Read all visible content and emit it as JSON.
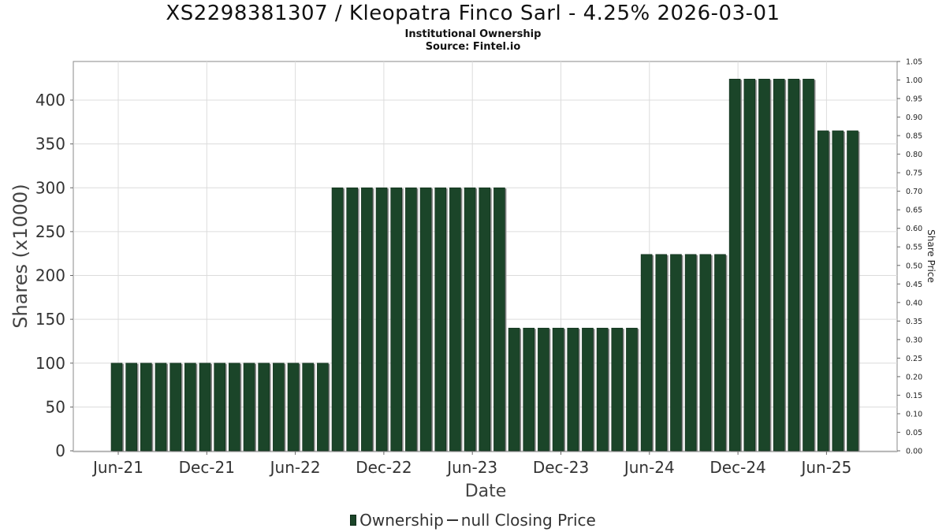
{
  "header": {
    "title": "XS2298381307 / Kleopatra Finco Sarl - 4.25% 2026-03-01",
    "subtitle": "Institutional Ownership",
    "source": "Source: Fintel.io"
  },
  "legend": {
    "ownership_label": "Ownership",
    "price_label": "null Closing Price"
  },
  "colors": {
    "bar_fill": "#1b4529",
    "bar_shadow": "#8a8a8a",
    "grid": "#dcdcdc",
    "plot_border": "#888888"
  },
  "chart_data": {
    "type": "bar",
    "title": "XS2298381307 / Kleopatra Finco Sarl - 4.25% 2026-03-01",
    "xlabel": "Date",
    "ylabel": "Shares (x1000)",
    "y2label": "Share Price",
    "ylim": [
      0,
      445
    ],
    "y2lim": [
      0,
      1.05
    ],
    "yticks": [
      0,
      50,
      100,
      150,
      200,
      250,
      300,
      350,
      400
    ],
    "y2ticks": [
      "0.00",
      "0.05",
      "0.10",
      "0.15",
      "0.20",
      "0.25",
      "0.30",
      "0.35",
      "0.40",
      "0.45",
      "0.50",
      "0.55",
      "0.60",
      "0.65",
      "0.70",
      "0.75",
      "0.80",
      "0.85",
      "0.90",
      "0.95",
      "1.00",
      "1.05"
    ],
    "xticks": [
      "Jun-21",
      "Dec-21",
      "Jun-22",
      "Dec-22",
      "Jun-23",
      "Dec-23",
      "Jun-24",
      "Dec-24",
      "Jun-25"
    ],
    "grid": true,
    "legend_position": "bottom",
    "series": [
      {
        "name": "Ownership",
        "values": [
          100,
          100,
          100,
          100,
          100,
          100,
          100,
          100,
          100,
          100,
          100,
          100,
          100,
          100,
          100,
          300,
          300,
          300,
          300,
          300,
          300,
          300,
          300,
          300,
          300,
          300,
          300,
          140,
          140,
          140,
          140,
          140,
          140,
          140,
          140,
          140,
          224,
          224,
          224,
          224,
          224,
          224,
          424,
          424,
          424,
          424,
          424,
          424,
          365,
          365,
          365
        ]
      }
    ]
  }
}
